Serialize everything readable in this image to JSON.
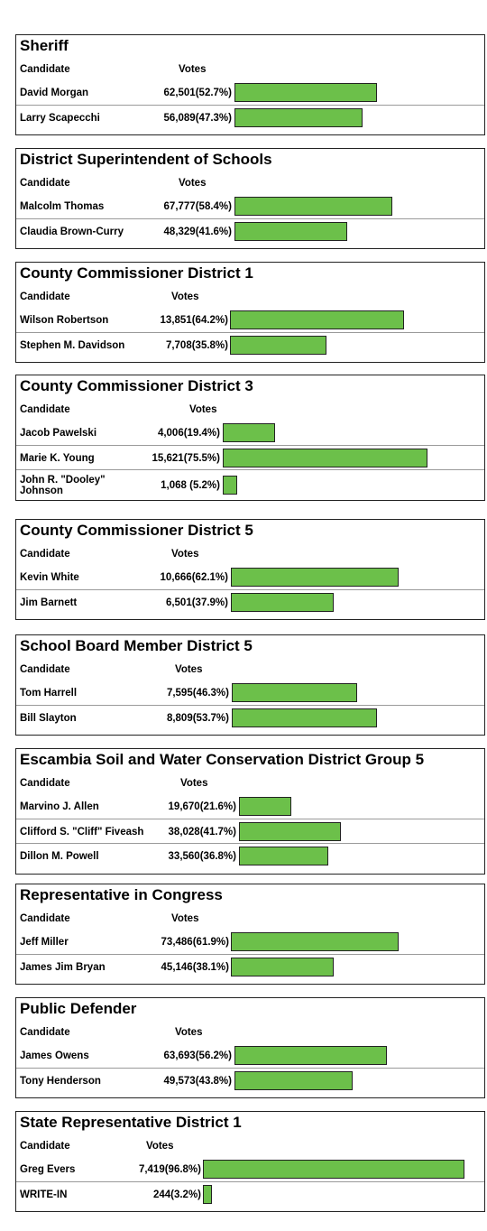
{
  "chart_data": [
    {
      "type": "bar",
      "title": "Sheriff",
      "column_headers": [
        "Candidate",
        "Votes"
      ],
      "candidates": [
        {
          "name": "David Morgan",
          "votes": "62,501",
          "pct": "(52.7%)",
          "value": 52.7
        },
        {
          "name": "Larry Scapecchi",
          "votes": "56,089",
          "pct": "(47.3%)",
          "value": 47.3
        }
      ]
    },
    {
      "type": "bar",
      "title": "District Superintendent of Schools",
      "column_headers": [
        "Candidate",
        "Votes"
      ],
      "candidates": [
        {
          "name": "Malcolm Thomas",
          "votes": "67,777",
          "pct": "(58.4%)",
          "value": 58.4
        },
        {
          "name": "Claudia Brown-Curry",
          "votes": "48,329",
          "pct": "(41.6%)",
          "value": 41.6
        }
      ]
    },
    {
      "type": "bar",
      "title": "County Commissioner District 1",
      "column_headers": [
        "Candidate",
        "Votes"
      ],
      "candidates": [
        {
          "name": "Wilson Robertson",
          "votes": "13,851",
          "pct": "(64.2%)",
          "value": 64.2
        },
        {
          "name": "Stephen M. Davidson",
          "votes": "7,708",
          "pct": "(35.8%)",
          "value": 35.8
        }
      ]
    },
    {
      "type": "bar",
      "title": "County Commissioner District 3",
      "column_headers": [
        "Candidate",
        "Votes"
      ],
      "candidates": [
        {
          "name": "Jacob Pawelski",
          "votes": "4,006",
          "pct": "(19.4%)",
          "value": 19.4
        },
        {
          "name": "Marie K. Young",
          "votes": "15,621",
          "pct": "(75.5%)",
          "value": 75.5
        },
        {
          "name": "John R. \"Dooley\" Johnson",
          "votes": "1,068",
          "pct": " (5.2%)",
          "value": 5.2
        }
      ]
    },
    {
      "type": "bar",
      "title": "County Commissioner District 5",
      "column_headers": [
        "Candidate",
        "Votes"
      ],
      "candidates": [
        {
          "name": "Kevin White",
          "votes": "10,666",
          "pct": "(62.1%)",
          "value": 62.1
        },
        {
          "name": "Jim Barnett",
          "votes": "6,501",
          "pct": "(37.9%)",
          "value": 37.9
        }
      ]
    },
    {
      "type": "bar",
      "title": "School Board Member District 5",
      "column_headers": [
        "Candidate",
        "Votes"
      ],
      "candidates": [
        {
          "name": "Tom Harrell",
          "votes": "7,595",
          "pct": "(46.3%)",
          "value": 46.3
        },
        {
          "name": "Bill Slayton",
          "votes": "8,809",
          "pct": "(53.7%)",
          "value": 53.7
        }
      ]
    },
    {
      "type": "bar",
      "title": "Escambia Soil and Water Conservation District Group 5",
      "column_headers": [
        "Candidate",
        "Votes"
      ],
      "candidates": [
        {
          "name": "Marvino J. Allen",
          "votes": "19,670",
          "pct": "(21.6%)",
          "value": 21.6
        },
        {
          "name": "Clifford S. \"Cliff\" Fiveash",
          "votes": "38,028",
          "pct": "(41.7%)",
          "value": 41.7
        },
        {
          "name": "Dillon M. Powell",
          "votes": "33,560",
          "pct": "(36.8%)",
          "value": 36.8
        }
      ]
    },
    {
      "type": "bar",
      "title": "Representative in Congress",
      "column_headers": [
        "Candidate",
        "Votes"
      ],
      "candidates": [
        {
          "name": "Jeff Miller",
          "votes": "73,486",
          "pct": "(61.9%)",
          "value": 61.9
        },
        {
          "name": "James Jim Bryan",
          "votes": "45,146",
          "pct": "(38.1%)",
          "value": 38.1
        }
      ]
    },
    {
      "type": "bar",
      "title": "Public Defender",
      "column_headers": [
        "Candidate",
        "Votes"
      ],
      "candidates": [
        {
          "name": "James Owens",
          "votes": "63,693",
          "pct": "(56.2%)",
          "value": 56.2
        },
        {
          "name": "Tony Henderson",
          "votes": "49,573",
          "pct": "(43.8%)",
          "value": 43.8
        }
      ]
    },
    {
      "type": "bar",
      "title": "State Representative District 1",
      "column_headers": [
        "Candidate",
        "Votes"
      ],
      "candidates": [
        {
          "name": "Greg Evers",
          "votes": "7,419",
          "pct": "(96.8%)",
          "value": 96.8
        },
        {
          "name": "WRITE-IN",
          "votes": "244",
          "pct": "(3.2%)",
          "value": 3.2
        }
      ]
    }
  ],
  "colors": {
    "bar": "#6cc04a",
    "border": "#222222"
  }
}
